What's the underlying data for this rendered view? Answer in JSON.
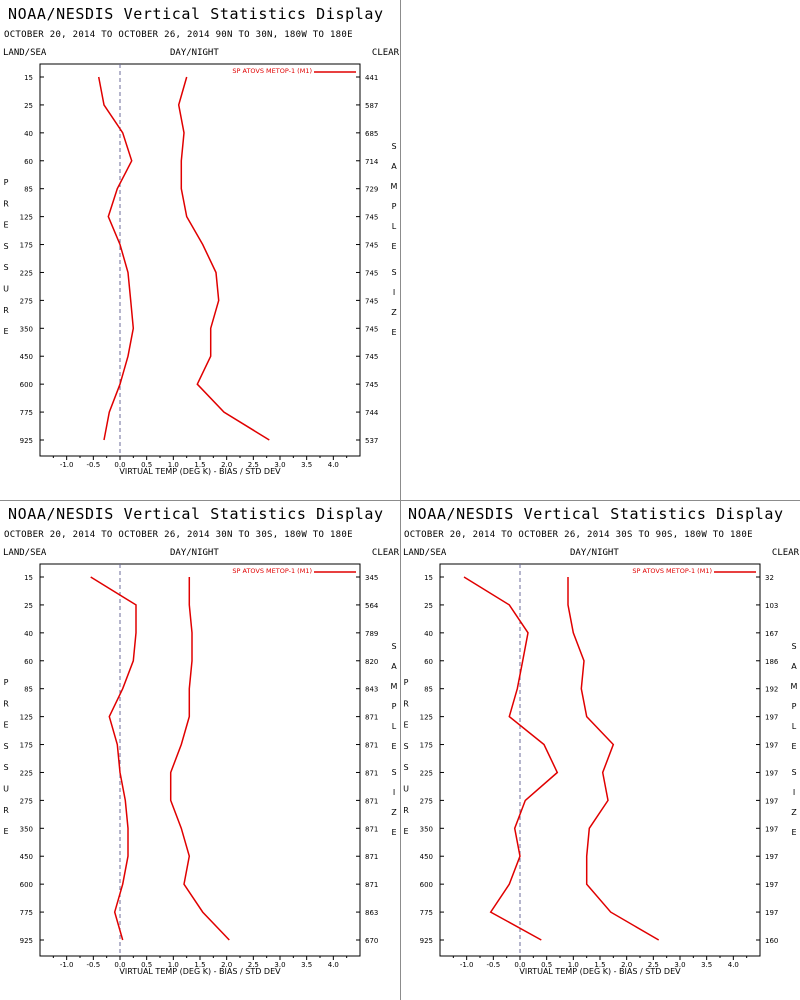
{
  "panels": [
    {
      "title": "NOAA/NESDIS Vertical Statistics Display",
      "subtitle": "OCTOBER 20, 2014 TO OCTOBER 26, 2014  90N TO 30N, 180W TO 180E",
      "left_header": "LAND/SEA",
      "center_header": "DAY/NIGHT",
      "right_header": "CLEAR"
    },
    {
      "title": "NOAA/NESDIS Vertical Statistics Display",
      "subtitle": "OCTOBER 20, 2014 TO OCTOBER 26, 2014  30N TO 30S, 180W TO 180E",
      "left_header": "LAND/SEA",
      "center_header": "DAY/NIGHT",
      "right_header": "CLEAR"
    },
    {
      "title": "NOAA/NESDIS Vertical Statistics Display",
      "subtitle": "OCTOBER 20, 2014 TO OCTOBER 26, 2014  30S TO 90S, 180W TO 180E",
      "left_header": "LAND/SEA",
      "center_header": "DAY/NIGHT",
      "right_header": "CLEAR"
    }
  ],
  "chart_data": [
    {
      "type": "line",
      "xlabel": "VIRTUAL TEMP (DEG K) - BIAS / STD DEV",
      "ylabel": "PRESSURE",
      "y2label": "SAMPLE SIZE",
      "legend": "SP ATOVS METOP-1 (M1)",
      "legend_position": "top-right",
      "series_color": "#e00000",
      "zero_line": "dashed",
      "xlim": [
        -1.5,
        4.5
      ],
      "xticks": [
        "-1.0",
        "-0.5",
        "0.0",
        "0.5",
        "1.0",
        "1.5",
        "2.0",
        "2.5",
        "3.0",
        "3.5",
        "4.0"
      ],
      "pressure_levels": [
        "15",
        "25",
        "40",
        "60",
        "85",
        "125",
        "175",
        "225",
        "275",
        "350",
        "450",
        "600",
        "775",
        "925"
      ],
      "sample_size": [
        "441",
        "587",
        "685",
        "714",
        "729",
        "745",
        "745",
        "745",
        "745",
        "745",
        "745",
        "745",
        "744",
        "537"
      ],
      "series": [
        {
          "name": "BIAS",
          "values": [
            -0.4,
            -0.3,
            0.05,
            0.22,
            -0.05,
            -0.22,
            0.0,
            0.15,
            0.2,
            0.25,
            0.15,
            0.0,
            -0.2,
            -0.3
          ]
        },
        {
          "name": "STD DEV",
          "values": [
            1.25,
            1.1,
            1.2,
            1.15,
            1.15,
            1.25,
            1.55,
            1.8,
            1.85,
            1.7,
            1.7,
            1.45,
            1.95,
            2.8
          ]
        }
      ]
    },
    {
      "type": "line",
      "xlabel": "VIRTUAL TEMP (DEG K) - BIAS / STD DEV",
      "ylabel": "PRESSURE",
      "y2label": "SAMPLE SIZE",
      "legend": "SP ATOVS METOP-1 (M1)",
      "legend_position": "top-right",
      "series_color": "#e00000",
      "zero_line": "dashed",
      "xlim": [
        -1.5,
        4.5
      ],
      "xticks": [
        "-1.0",
        "-0.5",
        "0.0",
        "0.5",
        "1.0",
        "1.5",
        "2.0",
        "2.5",
        "3.0",
        "3.5",
        "4.0"
      ],
      "pressure_levels": [
        "15",
        "25",
        "40",
        "60",
        "85",
        "125",
        "175",
        "225",
        "275",
        "350",
        "450",
        "600",
        "775",
        "925"
      ],
      "sample_size": [
        "345",
        "564",
        "789",
        "820",
        "843",
        "871",
        "871",
        "871",
        "871",
        "871",
        "871",
        "871",
        "863",
        "670"
      ],
      "series": [
        {
          "name": "BIAS",
          "values": [
            -0.55,
            0.3,
            0.3,
            0.25,
            0.05,
            -0.2,
            -0.05,
            0.0,
            0.1,
            0.15,
            0.15,
            0.05,
            -0.1,
            0.05
          ]
        },
        {
          "name": "STD DEV",
          "values": [
            1.3,
            1.3,
            1.35,
            1.35,
            1.3,
            1.3,
            1.15,
            0.95,
            0.95,
            1.15,
            1.3,
            1.2,
            1.55,
            2.05
          ]
        }
      ]
    },
    {
      "type": "line",
      "xlabel": "VIRTUAL TEMP (DEG K) - BIAS / STD DEV",
      "ylabel": "PRESSURE",
      "y2label": "SAMPLE SIZE",
      "legend": "SP ATOVS METOP-1 (M1)",
      "legend_position": "top-right",
      "series_color": "#e00000",
      "zero_line": "dashed",
      "xlim": [
        -1.5,
        4.5
      ],
      "xticks": [
        "-1.0",
        "-0.5",
        "0.0",
        "0.5",
        "1.0",
        "1.5",
        "2.0",
        "2.5",
        "3.0",
        "3.5",
        "4.0"
      ],
      "pressure_levels": [
        "15",
        "25",
        "40",
        "60",
        "85",
        "125",
        "175",
        "225",
        "275",
        "350",
        "450",
        "600",
        "775",
        "925"
      ],
      "sample_size": [
        "32",
        "103",
        "167",
        "186",
        "192",
        "197",
        "197",
        "197",
        "197",
        "197",
        "197",
        "197",
        "197",
        "160"
      ],
      "series": [
        {
          "name": "BIAS",
          "values": [
            -1.05,
            -0.2,
            0.15,
            0.05,
            -0.05,
            -0.2,
            0.45,
            0.7,
            0.1,
            -0.1,
            0.0,
            -0.2,
            -0.55,
            0.4
          ]
        },
        {
          "name": "STD DEV",
          "values": [
            0.9,
            0.9,
            1.0,
            1.2,
            1.15,
            1.25,
            1.75,
            1.55,
            1.65,
            1.3,
            1.25,
            1.25,
            1.7,
            2.6
          ]
        }
      ]
    }
  ]
}
